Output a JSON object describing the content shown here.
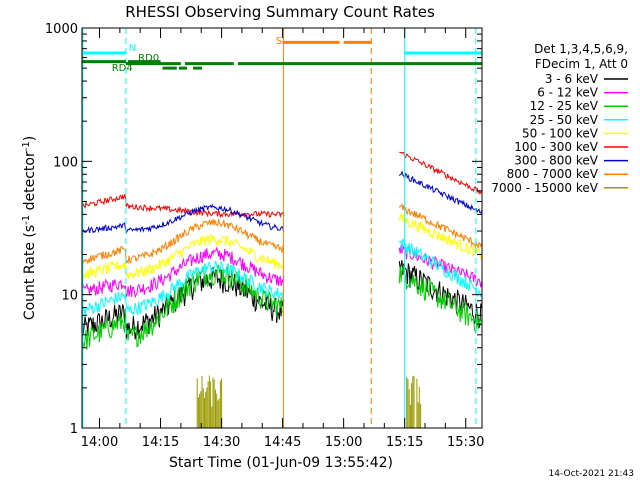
{
  "chart_data": {
    "type": "line",
    "title": "RHESSI Observing Summary Count Rates",
    "xlabel": "Start Time (01-Jun-09 13:55:42)",
    "ylabel_main": "Count Rate (s",
    "ylabel_sup1": "-1",
    "ylabel_mid": " detector",
    "ylabel_sup2": "-1",
    "ylabel_end": ")",
    "y_scale": "log",
    "ylim": [
      1,
      1000
    ],
    "xlim": [
      "13:55:42",
      "15:34:00"
    ],
    "x_ticks": [
      "14:00",
      "14:15",
      "14:30",
      "14:45",
      "15:00",
      "15:15",
      "15:30"
    ],
    "x_tick_minutes": [
      840,
      855,
      870,
      885,
      900,
      915,
      930
    ],
    "x_range_minutes": [
      835.7,
      934.0
    ],
    "y_ticks": [
      1,
      10,
      100,
      1000
    ],
    "y_tick_labels": [
      "1",
      "10",
      "100",
      "1000"
    ],
    "legend": {
      "header": [
        "Det 1,3,4,5,6,9,",
        "FDecim 1, Att 0"
      ],
      "placement": "right"
    },
    "series": [
      {
        "name": "3 - 6 keV",
        "color": "#000000",
        "pre": [
          5.5,
          7.5
        ],
        "mid": 12.5,
        "end_pre": 7.0,
        "post": [
          16,
          7
        ]
      },
      {
        "name": "6 - 12 keV",
        "color": "#ff00ff",
        "pre": [
          10.5,
          12.5
        ],
        "mid": 19.5,
        "end_pre": 12.0,
        "post": [
          22,
          12.5
        ]
      },
      {
        "name": "12 - 25 keV",
        "color": "#00cc00",
        "pre": [
          4.5,
          6.5
        ],
        "mid": 13.0,
        "end_pre": 7.5,
        "post": [
          15,
          6.0
        ]
      },
      {
        "name": "25 - 50 keV",
        "color": "#00ffff",
        "pre": [
          7.5,
          10.0
        ],
        "mid": 15.0,
        "end_pre": 9.5,
        "post": [
          25,
          10.5
        ]
      },
      {
        "name": "50 - 100 keV",
        "color": "#ffff00",
        "pre": [
          14.0,
          17.0
        ],
        "mid": 25.0,
        "end_pre": 16.0,
        "post": [
          38,
          20
        ]
      },
      {
        "name": "100 - 300 keV",
        "color": "#ff0000",
        "pre": [
          46,
          55
        ],
        "mid": 38.0,
        "end_pre": 40,
        "post": [
          118,
          58
        ]
      },
      {
        "name": "300 - 800 keV",
        "color": "#0000cc",
        "pre": [
          30,
          33
        ],
        "mid": 45.0,
        "end_pre": 30,
        "post": [
          82,
          41
        ]
      },
      {
        "name": "800 - 7000 keV",
        "color": "#ff8000",
        "pre": [
          18,
          22
        ],
        "mid": 33.0,
        "end_pre": 21,
        "post": [
          46,
          23
        ]
      },
      {
        "name": "7000 - 15000 keV",
        "color": "#999900",
        "pre": [
          1,
          1
        ],
        "mid": 1,
        "end_pre": 1,
        "post": [
          1,
          1
        ]
      }
    ],
    "data_gap_minutes": [
      885.5,
      913.5
    ],
    "annotations": {
      "bars": [
        {
          "label": "N",
          "color": "#00ffff",
          "segments": [
            [
              835.7,
              846.5
            ],
            [
              915.0,
              934.0
            ]
          ],
          "level": 650
        },
        {
          "label": "S",
          "color": "#ff8000",
          "segments": [
            [
              885.0,
              899.0
            ],
            [
              900.0,
              906.8
            ]
          ],
          "level": 780
        },
        {
          "label": "RD0",
          "color": "#007f00",
          "segments": [
            [
              846.5,
              860.0
            ],
            [
              861.0,
              873.0
            ],
            [
              874.0,
              934.0
            ]
          ],
          "level": 540
        },
        {
          "label": "RD4",
          "color": "#007f00",
          "segments": [
            [
              835.7,
              846.5
            ],
            [
              847.0,
              855.0
            ]
          ],
          "level": 560
        },
        {
          "label": "",
          "color": "#007f00",
          "segments": [
            [
              855.5,
              859.0
            ],
            [
              859.5,
              861.5
            ],
            [
              863.0,
              865.2
            ]
          ],
          "level": 500
        }
      ],
      "vlines": [
        {
          "minute": 835.9,
          "color": "#00ffff",
          "style": "solid"
        },
        {
          "minute": 846.5,
          "color": "#00ffff",
          "style": "dash"
        },
        {
          "minute": 885.2,
          "color": "#ff8000",
          "style": "solid"
        },
        {
          "minute": 906.8,
          "color": "#ff8000",
          "style": "dash"
        },
        {
          "minute": 915.0,
          "color": "#00ffff",
          "style": "solid"
        },
        {
          "minute": 932.5,
          "color": "#00ffff",
          "style": "dash"
        }
      ]
    },
    "bar_labels": {
      "N": "N",
      "RD0": "RD0",
      "RD4": "RD4",
      "S": "S"
    }
  },
  "footer_timestamp": "14-Oct-2021 21:43"
}
